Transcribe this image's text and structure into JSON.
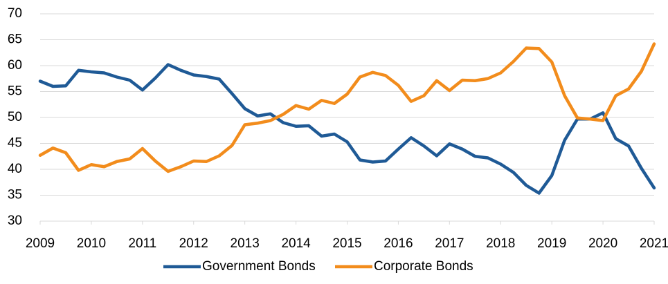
{
  "chart_data": {
    "type": "line",
    "x": [
      2009,
      2009.25,
      2009.5,
      2009.75,
      2010,
      2010.25,
      2010.5,
      2010.75,
      2011,
      2011.25,
      2011.5,
      2011.75,
      2012,
      2012.25,
      2012.5,
      2012.75,
      2013,
      2013.25,
      2013.5,
      2013.75,
      2014,
      2014.25,
      2014.5,
      2014.75,
      2015,
      2015.25,
      2015.5,
      2015.75,
      2016,
      2016.25,
      2016.5,
      2016.75,
      2017,
      2017.25,
      2017.5,
      2017.75,
      2018,
      2018.25,
      2018.5,
      2018.75,
      2019,
      2019.25,
      2019.5,
      2019.75,
      2020,
      2020.25,
      2020.5,
      2020.75,
      2021
    ],
    "series": [
      {
        "name": "Government Bonds",
        "color": "#1f5a96",
        "values": [
          57,
          56,
          56.1,
          59.1,
          58.8,
          58.6,
          57.8,
          57.2,
          55.3,
          57.6,
          60.2,
          59.1,
          58.2,
          57.9,
          57.4,
          54.6,
          51.7,
          50.3,
          50.7,
          49.0,
          48.3,
          48.4,
          46.4,
          46.8,
          45.3,
          41.8,
          41.4,
          41.6,
          43.9,
          46.1,
          44.5,
          42.6,
          44.9,
          43.9,
          42.5,
          42.2,
          41.0,
          39.4,
          36.9,
          35.4,
          38.8,
          45.6,
          49.7,
          49.7,
          50.9,
          45.9,
          44.5,
          40.2,
          36.4
        ]
      },
      {
        "name": "Corporate Bonds",
        "color": "#f28c1c",
        "values": [
          42.7,
          44.1,
          43.2,
          39.8,
          40.9,
          40.5,
          41.5,
          42.0,
          44.0,
          41.6,
          39.6,
          40.5,
          41.6,
          41.5,
          42.6,
          44.6,
          48.6,
          48.9,
          49.4,
          50.6,
          52.3,
          51.6,
          53.3,
          52.7,
          54.5,
          57.8,
          58.7,
          58.1,
          56.2,
          53.1,
          54.2,
          57.1,
          55.2,
          57.2,
          57.1,
          57.5,
          58.6,
          60.8,
          63.4,
          63.3,
          60.7,
          54.2,
          49.9,
          49.7,
          49.4,
          54.2,
          55.5,
          58.9,
          64.2
        ]
      }
    ],
    "xlim": [
      2009,
      2021
    ],
    "xticks": [
      2009,
      2010,
      2011,
      2012,
      2013,
      2014,
      2015,
      2016,
      2017,
      2018,
      2019,
      2020,
      2021
    ],
    "ylim": [
      30,
      70
    ],
    "yticks": [
      30,
      35,
      40,
      45,
      50,
      55,
      60,
      65,
      70
    ],
    "grid": true,
    "legend": "bottom"
  }
}
